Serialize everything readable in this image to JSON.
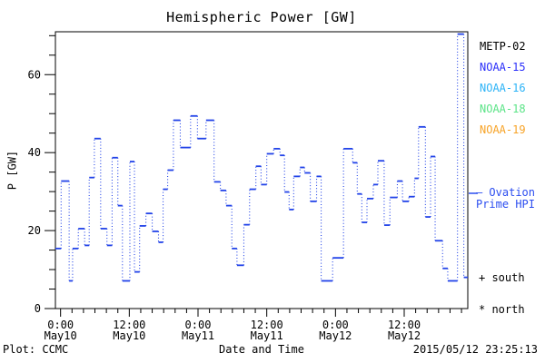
{
  "title": "Hemispheric Power [GW]",
  "axes": {
    "y_label": "P [GW]",
    "x_label": "Date and Time"
  },
  "legend": {
    "satellites": [
      {
        "label": "METP-02",
        "color": "#000000"
      },
      {
        "label": "NOAA-15",
        "color": "#2b2ffa"
      },
      {
        "label": "NOAA-16",
        "color": "#2cb3f7"
      },
      {
        "label": "NOAA-18",
        "color": "#5be487"
      },
      {
        "label": "NOAA-19",
        "color": "#f7a327"
      }
    ],
    "ovation_line1": "— Ovation",
    "ovation_line2": "Prime HPI",
    "ovation_color": "#2b4df0",
    "south_label": "+ south",
    "north_label": "* north"
  },
  "footer": {
    "left": "Plot: CCMC",
    "center": "Date and Time",
    "right": "2015/05/12 23:25:13"
  },
  "chart_data": {
    "type": "line",
    "style": "step-histogram, solid horizontal steps with dotted vertical connectors",
    "title": "Hemispheric Power [GW]",
    "xlabel": "Date and Time",
    "ylabel": "P [GW]",
    "ylim": [
      0,
      71
    ],
    "x_window_hours": 72,
    "grid": false,
    "legend_position": "right margin",
    "line_color": "#2243e8",
    "y_major_ticks": [
      0,
      20,
      40,
      60
    ],
    "y_minor_tick_interval": 5,
    "x_major_ticks": [
      {
        "t_hours": 0.9,
        "time": "0:00",
        "date": "May10"
      },
      {
        "t_hours": 12.9,
        "time": "12:00",
        "date": "May10"
      },
      {
        "t_hours": 24.9,
        "time": "0:00",
        "date": "May11"
      },
      {
        "t_hours": 36.9,
        "time": "12:00",
        "date": "May11"
      },
      {
        "t_hours": 48.9,
        "time": "0:00",
        "date": "May12"
      },
      {
        "t_hours": 60.9,
        "time": "12:00",
        "date": "May12"
      }
    ],
    "x_minor_tick_interval_hours": 2,
    "series": [
      {
        "name": "Hemispheric Power (Ovation Prime HPI)",
        "color": "#2243e8",
        "end_t_hours": 72,
        "points_t_hours_value_gw": [
          [
            0.0,
            15.4
          ],
          [
            1.0,
            32.7
          ],
          [
            2.4,
            7.1
          ],
          [
            3.0,
            15.4
          ],
          [
            4.0,
            20.5
          ],
          [
            5.1,
            16.2
          ],
          [
            5.9,
            33.6
          ],
          [
            6.8,
            43.6
          ],
          [
            7.9,
            20.5
          ],
          [
            9.0,
            16.2
          ],
          [
            9.9,
            38.7
          ],
          [
            10.9,
            26.4
          ],
          [
            11.7,
            7.1
          ],
          [
            13.0,
            37.7
          ],
          [
            13.8,
            9.4
          ],
          [
            14.7,
            21.2
          ],
          [
            15.8,
            24.4
          ],
          [
            16.9,
            19.8
          ],
          [
            18.0,
            17.0
          ],
          [
            18.8,
            30.6
          ],
          [
            19.6,
            35.5
          ],
          [
            20.6,
            48.3
          ],
          [
            21.8,
            41.3
          ],
          [
            23.6,
            49.4
          ],
          [
            24.8,
            43.6
          ],
          [
            26.3,
            48.3
          ],
          [
            27.7,
            32.5
          ],
          [
            28.8,
            30.3
          ],
          [
            29.8,
            26.4
          ],
          [
            30.8,
            15.4
          ],
          [
            31.7,
            11.1
          ],
          [
            32.9,
            21.5
          ],
          [
            33.9,
            30.6
          ],
          [
            35.0,
            36.5
          ],
          [
            35.9,
            31.8
          ],
          [
            36.9,
            39.7
          ],
          [
            38.1,
            41.0
          ],
          [
            39.2,
            39.3
          ],
          [
            40.0,
            29.9
          ],
          [
            40.8,
            25.4
          ],
          [
            41.6,
            33.9
          ],
          [
            42.7,
            36.2
          ],
          [
            43.5,
            34.8
          ],
          [
            44.5,
            27.5
          ],
          [
            45.6,
            33.9
          ],
          [
            46.4,
            7.1
          ],
          [
            48.4,
            13.0
          ],
          [
            50.3,
            41.0
          ],
          [
            51.9,
            37.4
          ],
          [
            52.7,
            29.4
          ],
          [
            53.5,
            22.1
          ],
          [
            54.4,
            28.2
          ],
          [
            55.5,
            31.8
          ],
          [
            56.3,
            37.9
          ],
          [
            57.4,
            21.4
          ],
          [
            58.4,
            28.5
          ],
          [
            59.7,
            32.7
          ],
          [
            60.6,
            27.5
          ],
          [
            61.7,
            28.7
          ],
          [
            62.7,
            33.4
          ],
          [
            63.4,
            46.6
          ],
          [
            64.6,
            23.5
          ],
          [
            65.5,
            39.0
          ],
          [
            66.3,
            17.4
          ],
          [
            67.6,
            10.3
          ],
          [
            68.5,
            7.1
          ],
          [
            70.2,
            70.4
          ],
          [
            71.3,
            8.0
          ]
        ]
      }
    ],
    "legend_entries": [
      "METP-02",
      "NOAA-15",
      "NOAA-16",
      "NOAA-18",
      "NOAA-19"
    ],
    "annotations": [
      "— Ovation Prime HPI",
      "+ south",
      "* north"
    ]
  }
}
